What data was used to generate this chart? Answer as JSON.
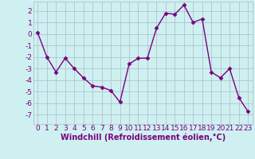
{
  "x": [
    0,
    1,
    2,
    3,
    4,
    5,
    6,
    7,
    8,
    9,
    10,
    11,
    12,
    13,
    14,
    15,
    16,
    17,
    18,
    19,
    20,
    21,
    22,
    23
  ],
  "y": [
    0.1,
    -2.0,
    -3.3,
    -2.1,
    -3.0,
    -3.8,
    -4.5,
    -4.6,
    -4.9,
    -5.9,
    -2.6,
    -2.1,
    -2.1,
    0.5,
    1.8,
    1.7,
    2.5,
    1.0,
    1.3,
    -3.3,
    -3.8,
    -3.0,
    -5.5,
    -6.7
  ],
  "line_color": "#7b0080",
  "marker": "D",
  "markersize": 2.5,
  "linewidth": 1.0,
  "bg_color": "#cef0f0",
  "grid_color": "#aabccc",
  "xlabel": "Windchill (Refroidissement éolien,°C)",
  "xlabel_fontsize": 7,
  "ylabel_ticks": [
    2,
    1,
    0,
    -1,
    -2,
    -3,
    -4,
    -5,
    -6,
    -7
  ],
  "xtick_labels": [
    "0",
    "1",
    "2",
    "3",
    "4",
    "5",
    "6",
    "7",
    "8",
    "9",
    "10",
    "11",
    "12",
    "13",
    "14",
    "15",
    "16",
    "17",
    "18",
    "19",
    "20",
    "21",
    "22",
    "23"
  ],
  "ylim": [
    -7.8,
    2.8
  ],
  "xlim": [
    -0.5,
    23.5
  ],
  "tick_fontsize": 6.5
}
